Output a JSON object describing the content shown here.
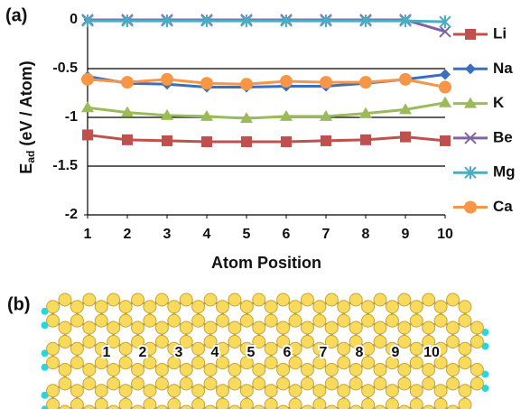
{
  "chart_data": {
    "type": "line",
    "panel_label": "(a)",
    "x_label": "Atom Position",
    "y_label": "E",
    "y_label_subscript": "ad",
    "y_label_unit": "(eV / Atom)",
    "x": [
      1,
      2,
      3,
      4,
      5,
      6,
      7,
      8,
      9,
      10
    ],
    "xlim": [
      1,
      10
    ],
    "xticks": [
      1,
      2,
      3,
      4,
      5,
      6,
      7,
      8,
      9,
      10
    ],
    "ylim": [
      -2,
      0
    ],
    "yticks": [
      0,
      -0.5,
      -1,
      -1.5,
      -2
    ],
    "grid": true,
    "series": [
      {
        "name": "Li",
        "color": "#c0504d",
        "marker": "square",
        "values": [
          -1.18,
          -1.23,
          -1.24,
          -1.25,
          -1.25,
          -1.25,
          -1.24,
          -1.23,
          -1.2,
          -1.24
        ]
      },
      {
        "name": "Na",
        "color": "#3a6fbf",
        "marker": "diamond",
        "values": [
          -0.58,
          -0.65,
          -0.66,
          -0.69,
          -0.69,
          -0.68,
          -0.68,
          -0.65,
          -0.61,
          -0.56
        ]
      },
      {
        "name": "K",
        "color": "#9bbb59",
        "marker": "triangle",
        "values": [
          -0.9,
          -0.95,
          -0.98,
          -0.99,
          -1.01,
          -0.99,
          -0.99,
          -0.96,
          -0.92,
          -0.85
        ]
      },
      {
        "name": "Be",
        "color": "#8064a2",
        "marker": "cross",
        "values": [
          0,
          0,
          0,
          0,
          0,
          0,
          0,
          0,
          0,
          -0.12
        ]
      },
      {
        "name": "Mg",
        "color": "#4bacc6",
        "marker": "star",
        "values": [
          -0.01,
          -0.01,
          -0.01,
          -0.01,
          -0.01,
          -0.01,
          -0.01,
          -0.01,
          -0.01,
          -0.02
        ]
      },
      {
        "name": "Ca",
        "color": "#f79646",
        "marker": "circle",
        "values": [
          -0.61,
          -0.64,
          -0.61,
          -0.65,
          -0.66,
          -0.63,
          -0.64,
          -0.64,
          -0.61,
          -0.69
        ]
      }
    ]
  },
  "panel_b": {
    "label": "(b)",
    "position_labels": [
      1,
      2,
      3,
      4,
      5,
      6,
      7,
      8,
      9,
      10
    ]
  }
}
